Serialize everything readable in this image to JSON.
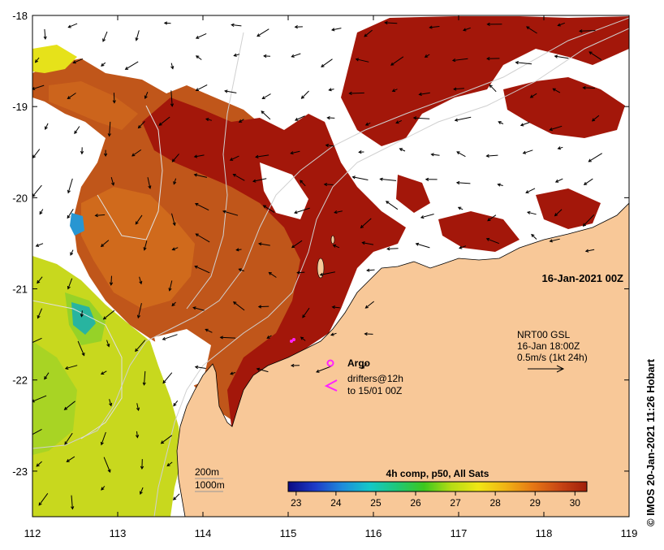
{
  "map": {
    "lon_range": [
      112,
      119
    ],
    "lat_range": [
      -23.5,
      -18
    ],
    "lon_ticks": [
      "112",
      "113",
      "114",
      "115",
      "116",
      "117",
      "118",
      "119"
    ],
    "lat_ticks": [
      "-18",
      "-19",
      "-20",
      "-21",
      "-22",
      "-23"
    ],
    "date_label": "16-Jan-2021 00Z",
    "credit": "© IMOS 20-Jan-2021 11:26 Hobart",
    "colors": {
      "land": "#f8c898",
      "coast": "#000000",
      "isobath": "#c8c8c8",
      "cloud": "#ffffff"
    }
  },
  "legend": {
    "argo_label": "Argo",
    "argo_color": "#ff22ff",
    "drifters_line1": "drifters@12h",
    "drifters_line2": "to 15/01 00Z",
    "drifters_color": "#ff22ff",
    "depth_200": "200m",
    "depth_1000": "1000m"
  },
  "current_scale": {
    "line1": "NRT00 GSL",
    "line2": "16-Jan 18:00Z",
    "line3": "0.5m/s (1kt 24h)"
  },
  "colorbar": {
    "title": "4h comp, p50, All Sats",
    "ticks": [
      "23",
      "24",
      "25",
      "26",
      "27",
      "28",
      "29",
      "30"
    ],
    "range": [
      22.8,
      30.3
    ],
    "stops": [
      "#0a0a82",
      "#1e3cc8",
      "#1e8cdc",
      "#14c8c8",
      "#1ec878",
      "#3cc81e",
      "#b4dc14",
      "#f0e614",
      "#f0b414",
      "#e67814",
      "#c84614",
      "#a01e0a"
    ]
  }
}
